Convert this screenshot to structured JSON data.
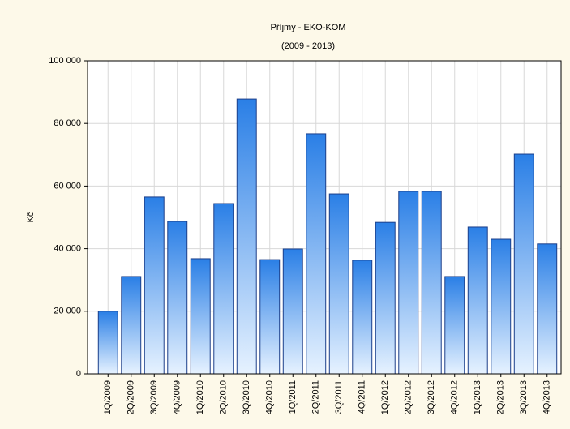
{
  "chart_data": {
    "type": "bar",
    "title": "Příjmy - EKO-KOM",
    "subtitle": "(2009 - 2013)",
    "y_label": "Kč",
    "categories": [
      "1Q/2009",
      "2Q/2009",
      "3Q/2009",
      "4Q/2009",
      "1Q/2010",
      "2Q/2010",
      "3Q/2010",
      "4Q/2010",
      "1Q/2011",
      "2Q/2011",
      "3Q/2011",
      "4Q/2011",
      "1Q/2012",
      "2Q/2012",
      "3Q/2012",
      "4Q/2012",
      "1Q/2013",
      "2Q/2013",
      "3Q/2013",
      "4Q/2013"
    ],
    "values": [
      20000,
      31100,
      56500,
      48700,
      36800,
      54400,
      87800,
      36500,
      39900,
      76700,
      57500,
      36300,
      48400,
      58300,
      58300,
      31100,
      46900,
      43000,
      70200,
      41500
    ],
    "color": "#2a7fe6",
    "ylim": [
      0,
      100000
    ],
    "yticks": [
      {
        "value": 0,
        "label": "0"
      },
      {
        "value": 20000,
        "label": "20 000"
      },
      {
        "value": 40000,
        "label": "40 000"
      },
      {
        "value": 60000,
        "label": "60 000"
      },
      {
        "value": 80000,
        "label": "80 000"
      },
      {
        "value": 100000,
        "label": "100 000"
      }
    ],
    "grid": true
  }
}
